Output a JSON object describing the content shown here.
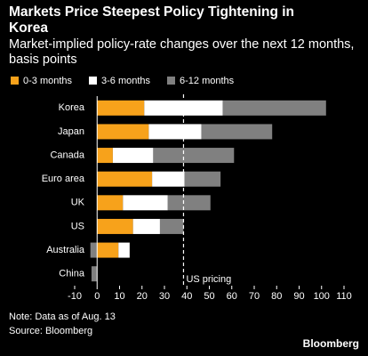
{
  "chart_data": {
    "type": "stacked-bar-horizontal",
    "title": "Markets Price Steepest Policy Tightening in Korea",
    "subtitle": "Market-implied policy-rate changes over the next 12 months, basis points",
    "categories": [
      "Korea",
      "Japan",
      "Canada",
      "Euro area",
      "UK",
      "US",
      "Australia",
      "China"
    ],
    "series": [
      {
        "name": "0-3 months",
        "color": "#f7a21b",
        "values": [
          21,
          23,
          7,
          24.5,
          11.5,
          16,
          9.5,
          0
        ]
      },
      {
        "name": "3-6 months",
        "color": "#ffffff",
        "values": [
          35,
          23.5,
          18,
          14.5,
          20,
          12,
          5,
          0
        ]
      },
      {
        "name": "6-12 months",
        "color": "#808080",
        "values": [
          46,
          31.5,
          36,
          16,
          19,
          10.5,
          -3,
          -2.5
        ]
      }
    ],
    "xlim": [
      -10,
      110
    ],
    "xticks": [
      -10,
      0,
      10,
      20,
      30,
      40,
      50,
      60,
      70,
      80,
      90,
      100,
      110
    ],
    "annotation": {
      "text": "US pricing",
      "value": 38.5
    },
    "note": "Note: Data as of Aug. 13",
    "source": "Source: Bloomberg",
    "credit": "Bloomberg"
  }
}
